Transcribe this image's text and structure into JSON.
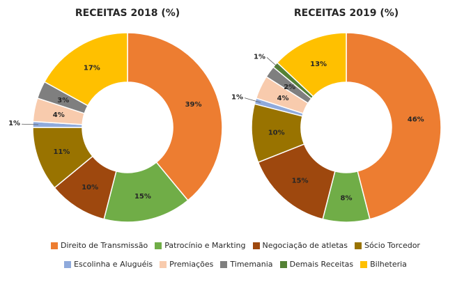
{
  "chart_data": {
    "type": "pie",
    "series_names": [
      "Direito de Transmissão",
      "Patrocínio e Markting",
      "Negociação de atletas",
      "Sócio Torcedor",
      "Escolinha e Aluguéis",
      "Premiações",
      "Timemania",
      "Demais Receitas",
      "Bilheteria"
    ],
    "colors": [
      "#ED7D31",
      "#70AD47",
      "#9E480E",
      "#997300",
      "#8FAADC",
      "#F8CBAD",
      "#7F7F7F",
      "#548235",
      "#FFC000"
    ],
    "charts": [
      {
        "title": "RECEITAS 2018 (%)",
        "values": [
          39,
          15,
          10,
          11,
          1,
          4,
          3,
          0,
          17
        ]
      },
      {
        "title": "RECEITAS 2019 (%)",
        "values": [
          46,
          8,
          15,
          10,
          1,
          4,
          2,
          1,
          13
        ]
      }
    ],
    "legend_placement": "bottom",
    "donut": true
  }
}
